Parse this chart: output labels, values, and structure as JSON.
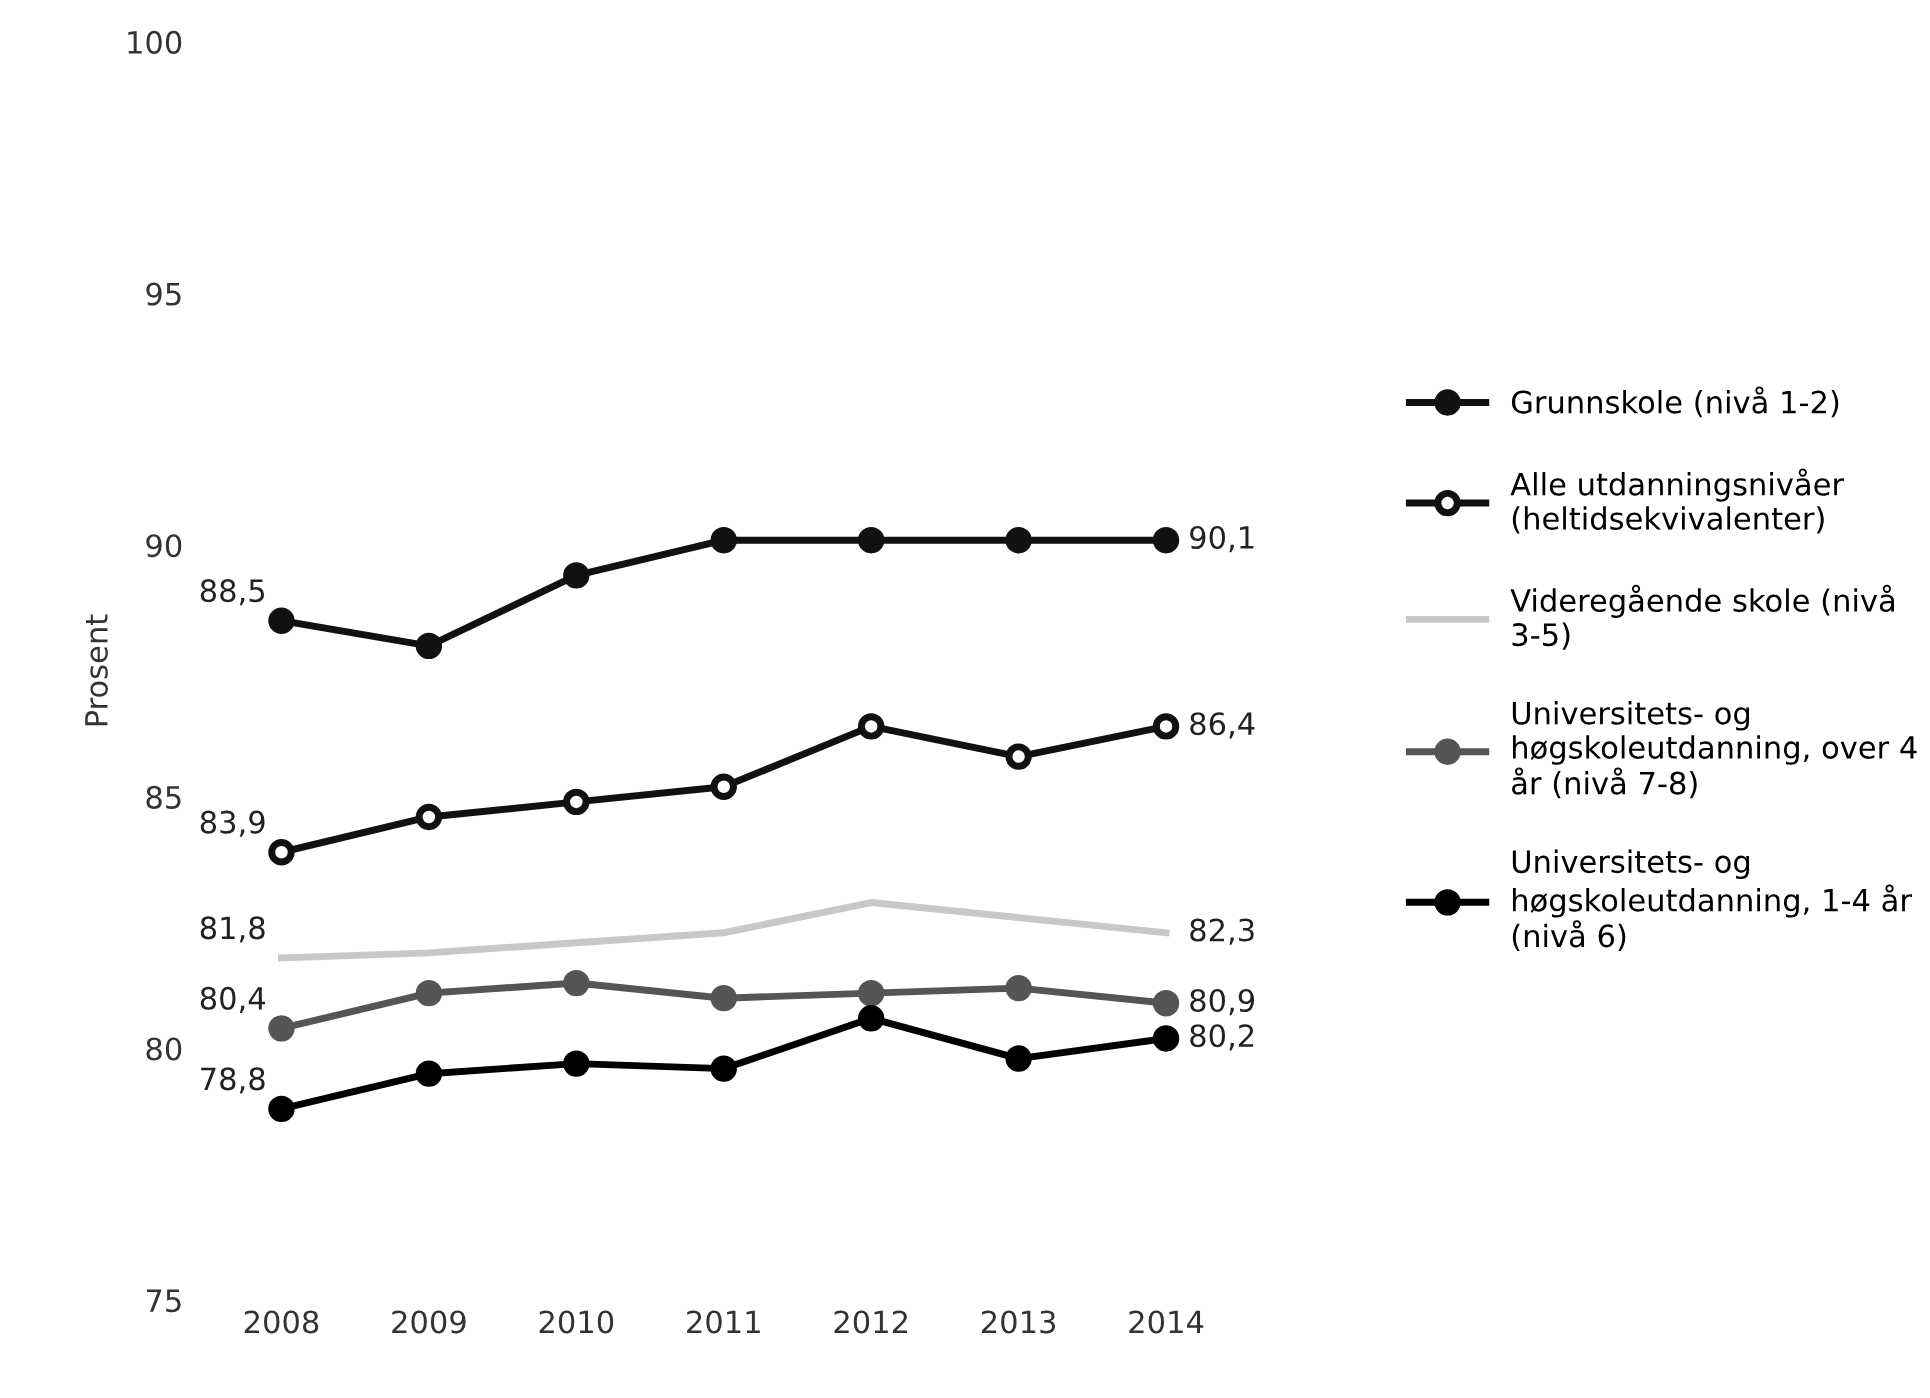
{
  "chart_data": {
    "type": "line",
    "ylabel": "Prosent",
    "categories": [
      "2008",
      "2009",
      "2010",
      "2011",
      "2012",
      "2013",
      "2014"
    ],
    "ylim": [
      75,
      100
    ],
    "yticks": [
      75,
      80,
      85,
      90,
      95,
      100
    ],
    "grid": false,
    "legend": "right",
    "line_style": "solid",
    "series": [
      {
        "name": "Grunnskole (nivå 1-2)",
        "color": "#111111",
        "marker": "circle",
        "values": [
          88.5,
          88.0,
          89.4,
          90.1,
          90.1,
          90.1,
          90.1
        ],
        "value_labels": [
          "88,5",
          null,
          null,
          null,
          null,
          null,
          "90,1"
        ]
      },
      {
        "name": "Alle utdanningsnivåer\n(heltidsekvivalenter)",
        "color": "#111111",
        "marker": "circle",
        "values": [
          83.9,
          84.6,
          84.9,
          85.2,
          86.4,
          85.8,
          86.4
        ],
        "value_labels": [
          "83,9",
          null,
          null,
          null,
          null,
          null,
          "86,4"
        ]
      },
      {
        "name": "Videregående skole (nivå\n3-5)",
        "color": "#c8c8c8",
        "marker": "none",
        "values": [
          81.8,
          81.9,
          82.1,
          82.3,
          82.9,
          82.6,
          82.3
        ],
        "value_labels": [
          "81,8",
          null,
          null,
          null,
          null,
          null,
          "82,3"
        ]
      },
      {
        "name": "Universitets- og\nhøgskoleutdanning, over 4\når (nivå 7-8)",
        "color": "#555555",
        "marker": "circle",
        "values": [
          80.4,
          81.1,
          81.3,
          81.0,
          81.1,
          81.2,
          80.9
        ],
        "value_labels": [
          "80,4",
          null,
          null,
          null,
          null,
          null,
          "80,9"
        ]
      },
      {
        "name": "Universitets- og\nhøgskoleutdanning, 1-4 år\n(nivå 6)",
        "color": "#000000",
        "marker": "circle",
        "values": [
          78.8,
          79.5,
          79.7,
          79.6,
          80.6,
          79.8,
          80.2
        ],
        "value_labels": [
          "78,8",
          null,
          null,
          null,
          null,
          null,
          "80,2"
        ]
      }
    ]
  }
}
